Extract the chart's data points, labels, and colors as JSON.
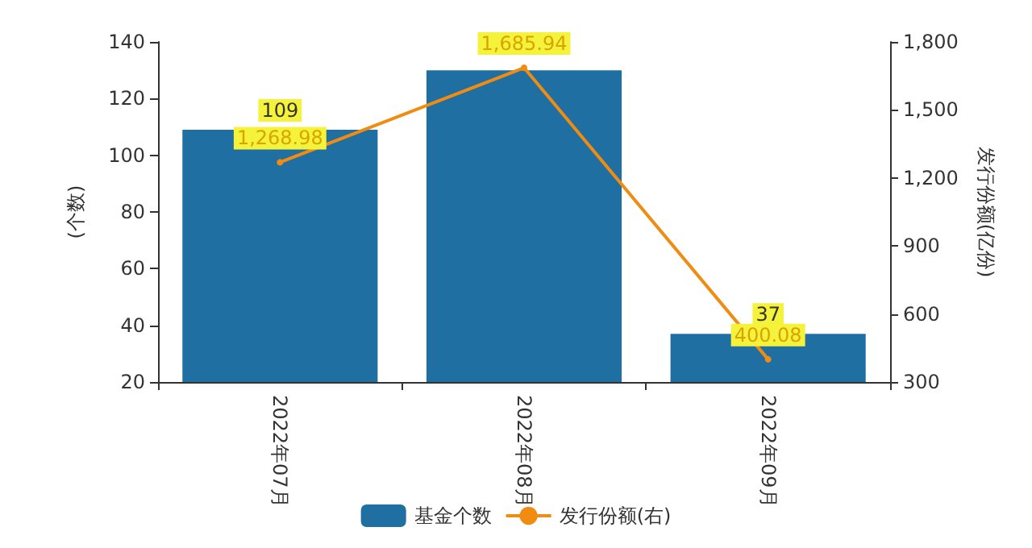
{
  "chart_data": {
    "type": "bar",
    "categories": [
      "2022年07月",
      "2022年08月",
      "2022年09月"
    ],
    "ylabel": "(个数)",
    "y2label": "发行份额(亿份)",
    "ylim": [
      20,
      140
    ],
    "yticks": [
      20,
      40,
      60,
      80,
      100,
      120,
      140
    ],
    "y2lim": [
      300,
      1800
    ],
    "y2ticks": [
      300,
      600,
      900,
      {
        "value": 1200,
        "label": "1,200"
      },
      {
        "value": 1500,
        "label": "1,500"
      },
      {
        "value": 1800,
        "label": "1,800"
      }
    ],
    "series": [
      {
        "name": "基金个数",
        "color": "#1f6fa3",
        "values": [
          109,
          130,
          37
        ],
        "value_labels": [
          "109",
          null,
          "37"
        ]
      },
      {
        "name": "发行份额(右)",
        "type": "line",
        "axis": "y2",
        "color": "#f08c12",
        "marker": "circle",
        "values": [
          1268.98,
          1685.94,
          400.08
        ],
        "value_labels": [
          "1,268.98",
          "1,685.94",
          "400.08"
        ]
      }
    ],
    "legend": "bottom",
    "grid": false
  }
}
